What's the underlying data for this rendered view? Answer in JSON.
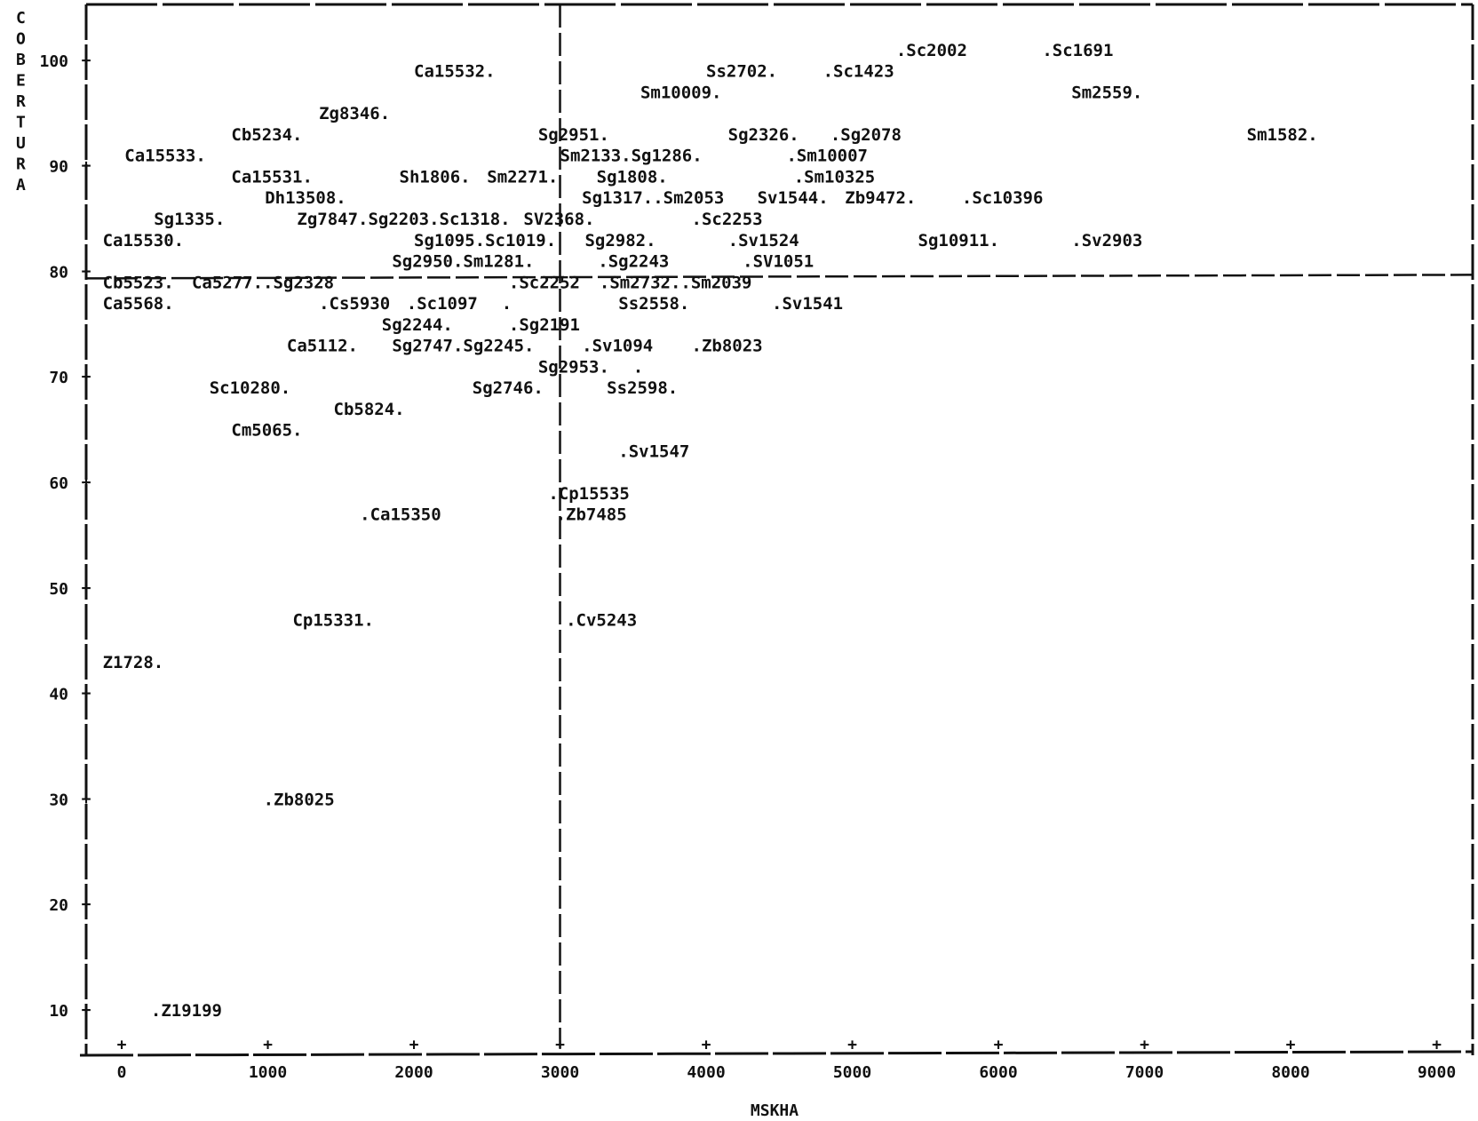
{
  "chart_data": {
    "type": "scatter",
    "xlabel": "MSKHA",
    "ylabel": "COBERTURA",
    "xlim": [
      -200,
      9000
    ],
    "ylim": [
      5,
      105
    ],
    "x_ticks": [
      0,
      1000,
      2000,
      3000,
      4000,
      5000,
      6000,
      7000,
      8000,
      9000
    ],
    "y_ticks": [
      10,
      20,
      30,
      40,
      50,
      60,
      70,
      80,
      90,
      100
    ],
    "reference_lines": {
      "x": 3000,
      "y": 80
    },
    "grid": false,
    "color": "#111111",
    "points": [
      {
        "label": ".Sc2002",
        "x": 5300,
        "y": 101
      },
      {
        "label": ".Sc1691",
        "x": 6300,
        "y": 101
      },
      {
        "label": "Ca15532.",
        "x": 2000,
        "y": 99
      },
      {
        "label": "Ss2702.",
        "x": 4000,
        "y": 99
      },
      {
        "label": ".Sc1423",
        "x": 4800,
        "y": 99
      },
      {
        "label": "Sm10009.",
        "x": 3550,
        "y": 97
      },
      {
        "label": "Sm2559.",
        "x": 6500,
        "y": 97
      },
      {
        "label": "Zg8346.",
        "x": 1350,
        "y": 95
      },
      {
        "label": "Cb5234.",
        "x": 750,
        "y": 93
      },
      {
        "label": "Sg2951.",
        "x": 2850,
        "y": 93
      },
      {
        "label": "Sg2326.",
        "x": 4150,
        "y": 93
      },
      {
        "label": ".Sg2078",
        "x": 4850,
        "y": 93
      },
      {
        "label": "Sm1582.",
        "x": 7700,
        "y": 93
      },
      {
        "label": "Ca15533.",
        "x": 20,
        "y": 91
      },
      {
        "label": "Sm2133.Sg1286.",
        "x": 3000,
        "y": 91
      },
      {
        "label": ".Sm10007",
        "x": 4550,
        "y": 91
      },
      {
        "label": "Ca15531.",
        "x": 750,
        "y": 89
      },
      {
        "label": "Sh1806.",
        "x": 1900,
        "y": 89
      },
      {
        "label": "Sm2271.",
        "x": 2500,
        "y": 89
      },
      {
        "label": "Sg1808.",
        "x": 3250,
        "y": 89
      },
      {
        "label": ".Sm10325",
        "x": 4600,
        "y": 89
      },
      {
        "label": "Dh13508.",
        "x": 980,
        "y": 87
      },
      {
        "label": "Sg1317..Sm2053",
        "x": 3150,
        "y": 87
      },
      {
        "label": "Sv1544.",
        "x": 4350,
        "y": 87
      },
      {
        "label": "Zb9472.",
        "x": 4950,
        "y": 87
      },
      {
        "label": ".Sc10396",
        "x": 5750,
        "y": 87
      },
      {
        "label": "Sg1335.",
        "x": 220,
        "y": 85
      },
      {
        "label": "Zg7847.Sg2203.Sc1318.",
        "x": 1200,
        "y": 85
      },
      {
        "label": "SV2368.",
        "x": 2750,
        "y": 85
      },
      {
        "label": ".Sc2253",
        "x": 3900,
        "y": 85
      },
      {
        "label": "Ca15530.",
        "x": -130,
        "y": 83
      },
      {
        "label": "Sg1095.Sc1019.",
        "x": 2000,
        "y": 83
      },
      {
        "label": "Sg2982.",
        "x": 3170,
        "y": 83
      },
      {
        "label": ".Sv1524",
        "x": 4150,
        "y": 83
      },
      {
        "label": "Sg10911.",
        "x": 5450,
        "y": 83
      },
      {
        "label": ".Sv2903",
        "x": 6500,
        "y": 83
      },
      {
        "label": "Sg2950.Sm1281.",
        "x": 1850,
        "y": 81
      },
      {
        "label": ".Sg2243",
        "x": 3260,
        "y": 81
      },
      {
        "label": ".SV1051",
        "x": 4250,
        "y": 81
      },
      {
        "label": "Cb5523.",
        "x": -130,
        "y": 79
      },
      {
        "label": "Ca5277..Sg2328",
        "x": 480,
        "y": 79
      },
      {
        "label": ".Sc2252",
        "x": 2650,
        "y": 79
      },
      {
        "label": ".Sm2732..Sm2039",
        "x": 3270,
        "y": 79
      },
      {
        "label": "Ca5568.",
        "x": -130,
        "y": 77
      },
      {
        "label": ".Cs5930",
        "x": 1350,
        "y": 77
      },
      {
        "label": ".Sc1097",
        "x": 1950,
        "y": 77
      },
      {
        "label": ".",
        "x": 2600,
        "y": 77
      },
      {
        "label": "Ss2558.",
        "x": 3400,
        "y": 77
      },
      {
        "label": ".Sv1541",
        "x": 4450,
        "y": 77
      },
      {
        "label": "Sg2244.",
        "x": 1780,
        "y": 75
      },
      {
        "label": ".Sg2191",
        "x": 2650,
        "y": 75
      },
      {
        "label": "Ca5112.",
        "x": 1130,
        "y": 73
      },
      {
        "label": "Sg2747.Sg2245.",
        "x": 1850,
        "y": 73
      },
      {
        "label": ".Sv1094",
        "x": 3150,
        "y": 73
      },
      {
        "label": ".Zb8023",
        "x": 3900,
        "y": 73
      },
      {
        "label": "Sg2953.",
        "x": 2850,
        "y": 71
      },
      {
        "label": ".",
        "x": 3500,
        "y": 71
      },
      {
        "label": "Sc10280.",
        "x": 600,
        "y": 69
      },
      {
        "label": "Sg2746.",
        "x": 2400,
        "y": 69
      },
      {
        "label": "Ss2598.",
        "x": 3320,
        "y": 69
      },
      {
        "label": "Cb5824.",
        "x": 1450,
        "y": 67
      },
      {
        "label": "Cm5065.",
        "x": 750,
        "y": 65
      },
      {
        "label": ".Sv1547",
        "x": 3400,
        "y": 63
      },
      {
        "label": ".Cp15535",
        "x": 2920,
        "y": 59
      },
      {
        "label": ".Zb7485",
        "x": 2970,
        "y": 57
      },
      {
        "label": ".Ca15350",
        "x": 1630,
        "y": 57
      },
      {
        "label": "Cp15331.",
        "x": 1170,
        "y": 47
      },
      {
        "label": ".Cv5243",
        "x": 3040,
        "y": 47
      },
      {
        "label": "Z1728.",
        "x": -130,
        "y": 43
      },
      {
        "label": ".Zb8025",
        "x": 970,
        "y": 30
      },
      {
        "label": ".Z19199",
        "x": 200,
        "y": 10
      }
    ]
  }
}
